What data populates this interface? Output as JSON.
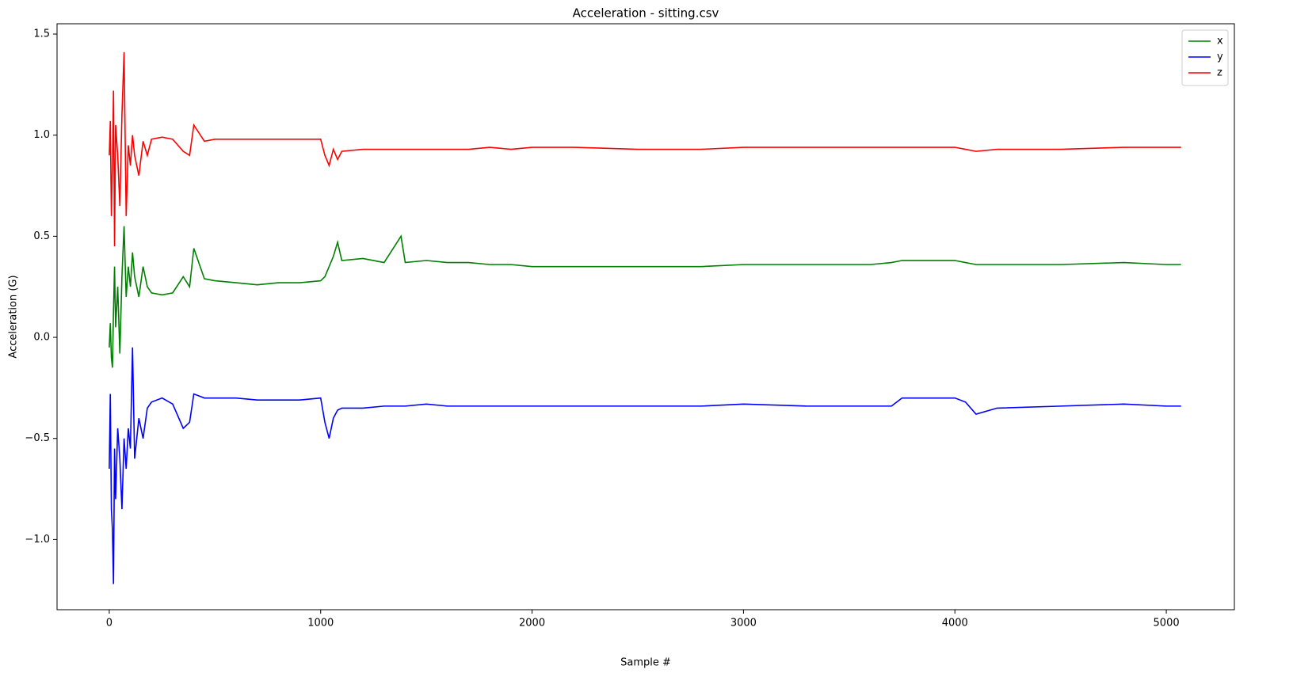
{
  "chart_data": {
    "type": "line",
    "title": "Acceleration - sitting.csv",
    "xlabel": "Sample #",
    "ylabel": "Acceleration (G)",
    "x": [
      0,
      5,
      10,
      15,
      20,
      25,
      30,
      40,
      50,
      60,
      70,
      80,
      90,
      100,
      110,
      120,
      140,
      160,
      180,
      200,
      250,
      300,
      350,
      380,
      400,
      450,
      500,
      600,
      700,
      800,
      900,
      1000,
      1020,
      1040,
      1060,
      1080,
      1100,
      1200,
      1300,
      1380,
      1400,
      1500,
      1600,
      1700,
      1800,
      1900,
      2000,
      2200,
      2500,
      2800,
      3000,
      3300,
      3600,
      3700,
      3750,
      3900,
      4000,
      4050,
      4100,
      4200,
      4500,
      4800,
      5000,
      5070
    ],
    "series": [
      {
        "name": "x",
        "color": "#008000",
        "values": [
          -0.05,
          0.07,
          -0.1,
          -0.15,
          0.13,
          0.35,
          0.05,
          0.25,
          -0.08,
          0.3,
          0.55,
          0.2,
          0.35,
          0.25,
          0.42,
          0.3,
          0.2,
          0.35,
          0.25,
          0.22,
          0.21,
          0.22,
          0.3,
          0.25,
          0.44,
          0.29,
          0.28,
          0.27,
          0.26,
          0.27,
          0.27,
          0.28,
          0.3,
          0.35,
          0.4,
          0.47,
          0.38,
          0.39,
          0.37,
          0.5,
          0.37,
          0.38,
          0.37,
          0.37,
          0.36,
          0.36,
          0.35,
          0.35,
          0.35,
          0.35,
          0.36,
          0.36,
          0.36,
          0.37,
          0.38,
          0.38,
          0.38,
          0.37,
          0.36,
          0.36,
          0.36,
          0.37,
          0.36,
          0.36
        ]
      },
      {
        "name": "y",
        "color": "#0000ff",
        "values": [
          -0.65,
          -0.28,
          -0.85,
          -0.95,
          -1.22,
          -0.55,
          -0.8,
          -0.45,
          -0.6,
          -0.85,
          -0.5,
          -0.65,
          -0.45,
          -0.55,
          -0.05,
          -0.6,
          -0.4,
          -0.5,
          -0.35,
          -0.32,
          -0.3,
          -0.33,
          -0.45,
          -0.42,
          -0.28,
          -0.3,
          -0.3,
          -0.3,
          -0.31,
          -0.31,
          -0.31,
          -0.3,
          -0.42,
          -0.5,
          -0.4,
          -0.36,
          -0.35,
          -0.35,
          -0.34,
          -0.34,
          -0.34,
          -0.33,
          -0.34,
          -0.34,
          -0.34,
          -0.34,
          -0.34,
          -0.34,
          -0.34,
          -0.34,
          -0.33,
          -0.34,
          -0.34,
          -0.34,
          -0.3,
          -0.3,
          -0.3,
          -0.32,
          -0.38,
          -0.35,
          -0.34,
          -0.33,
          -0.34,
          -0.34
        ]
      },
      {
        "name": "z",
        "color": "#ff0000",
        "values": [
          0.9,
          1.07,
          0.6,
          0.85,
          1.22,
          0.45,
          1.05,
          0.9,
          0.65,
          1.1,
          1.41,
          0.6,
          0.95,
          0.85,
          1.0,
          0.9,
          0.8,
          0.97,
          0.9,
          0.98,
          0.99,
          0.98,
          0.92,
          0.9,
          1.05,
          0.97,
          0.98,
          0.98,
          0.98,
          0.98,
          0.98,
          0.98,
          0.9,
          0.85,
          0.93,
          0.88,
          0.92,
          0.93,
          0.93,
          0.93,
          0.93,
          0.93,
          0.93,
          0.93,
          0.94,
          0.93,
          0.94,
          0.94,
          0.93,
          0.93,
          0.94,
          0.94,
          0.94,
          0.94,
          0.94,
          0.94,
          0.94,
          0.93,
          0.92,
          0.93,
          0.93,
          0.94,
          0.94,
          0.94
        ]
      }
    ],
    "xlim": [
      -247,
      5322
    ],
    "xticks": [
      0,
      1000,
      2000,
      3000,
      4000,
      5000
    ],
    "ylim": [
      -1.347,
      1.551
    ],
    "yticks": [
      {
        "value": -1.0,
        "label": "−1.0"
      },
      {
        "value": -0.5,
        "label": "−0.5"
      },
      {
        "value": 0.0,
        "label": "0.0"
      },
      {
        "value": 0.5,
        "label": "0.5"
      },
      {
        "value": 1.0,
        "label": "1.0"
      },
      {
        "value": 1.5,
        "label": "1.5"
      }
    ],
    "grid": false,
    "legend": "upper right"
  }
}
